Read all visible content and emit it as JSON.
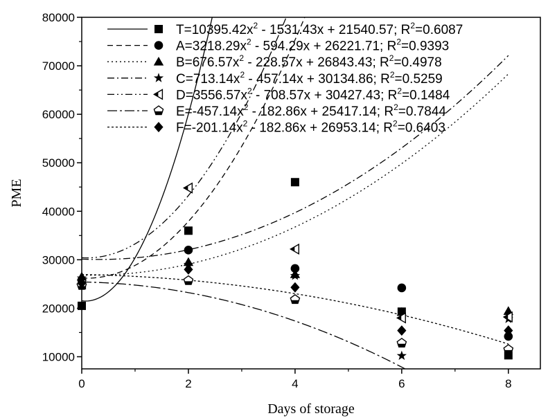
{
  "chart_data": {
    "type": "scatter",
    "xlabel": "Days of storage",
    "ylabel": "PME",
    "xlim": [
      0,
      8.6
    ],
    "ylim": [
      7500,
      80000
    ],
    "x_ticks": [
      0,
      2,
      4,
      6,
      8
    ],
    "y_ticks": [
      10000,
      20000,
      30000,
      40000,
      50000,
      60000,
      70000,
      80000
    ],
    "legend_position": "top",
    "grid": false,
    "series": [
      {
        "name": "T",
        "marker": "square",
        "line_style": "solid",
        "coef": [
          10395.42,
          -1531.43,
          21540.57
        ],
        "legend_label": [
          "T=10395.42x",
          " - 1531.43x + 21540.57; R",
          "=0.6087"
        ],
        "x": [
          0,
          2,
          4,
          6,
          8
        ],
        "y": [
          20500,
          36000,
          46000,
          19300,
          10300
        ]
      },
      {
        "name": "A",
        "marker": "circle",
        "line_style": "dashed",
        "coef": [
          3218.29,
          -594.29,
          26221.71
        ],
        "legend_label": [
          "A=3218.29x",
          " - 594.29x + 26221.71; R",
          "=0.9393"
        ],
        "x": [
          0,
          2,
          4,
          6,
          8
        ],
        "y": [
          25800,
          32000,
          28200,
          24200,
          14200
        ]
      },
      {
        "name": "B",
        "marker": "triangle",
        "line_style": "dotted",
        "coef": [
          676.57,
          -228.57,
          26843.43
        ],
        "legend_label": [
          "B=676.57x",
          " - 228.57x + 26843.43; R",
          "=0.4978"
        ],
        "x": [
          0,
          2,
          4,
          6,
          8
        ],
        "y": [
          26500,
          29500,
          27000,
          19200,
          19400
        ]
      },
      {
        "name": "C",
        "marker": "star",
        "line_style": "dashdot",
        "coef": [
          713.14,
          -457.14,
          30134.86
        ],
        "legend_label": [
          "C=713.14x",
          " - 457.14x + 30134.86; R",
          "=0.5259"
        ],
        "x": [
          0,
          2,
          4,
          6,
          8
        ],
        "y": [
          26200,
          29000,
          26700,
          10200,
          17800
        ]
      },
      {
        "name": "D",
        "marker": "half-triangle-left",
        "line_style": "dashdotdot",
        "coef": [
          3556.57,
          -708.57,
          30427.43
        ],
        "legend_label": [
          "D=3556.57x",
          " - 708.57x + 30427.43; R",
          "=0.1484"
        ],
        "x": [
          0,
          2,
          4,
          6,
          8
        ],
        "y": [
          25000,
          44800,
          32200,
          18000,
          18200
        ]
      },
      {
        "name": "E",
        "marker": "half-pentagon",
        "line_style": "dashdot2",
        "coef": [
          -457.14,
          -182.86,
          25417.14
        ],
        "legend_label": [
          "E=-457.14x",
          " - 182.86x + 25417.14; R",
          "=0.7844"
        ],
        "x": [
          0,
          2,
          4,
          6,
          8
        ],
        "y": [
          24700,
          25700,
          21800,
          12800,
          11500
        ]
      },
      {
        "name": "F",
        "marker": "diamond",
        "line_style": "shortdot",
        "coef": [
          -201.14,
          -182.86,
          26953.14
        ],
        "legend_label": [
          "F=-201.14x",
          " - 182.86x + 26953.14; R",
          "=0.6403"
        ],
        "x": [
          0,
          2,
          4,
          6,
          8
        ],
        "y": [
          25200,
          28000,
          24300,
          15400,
          15400
        ]
      }
    ]
  }
}
